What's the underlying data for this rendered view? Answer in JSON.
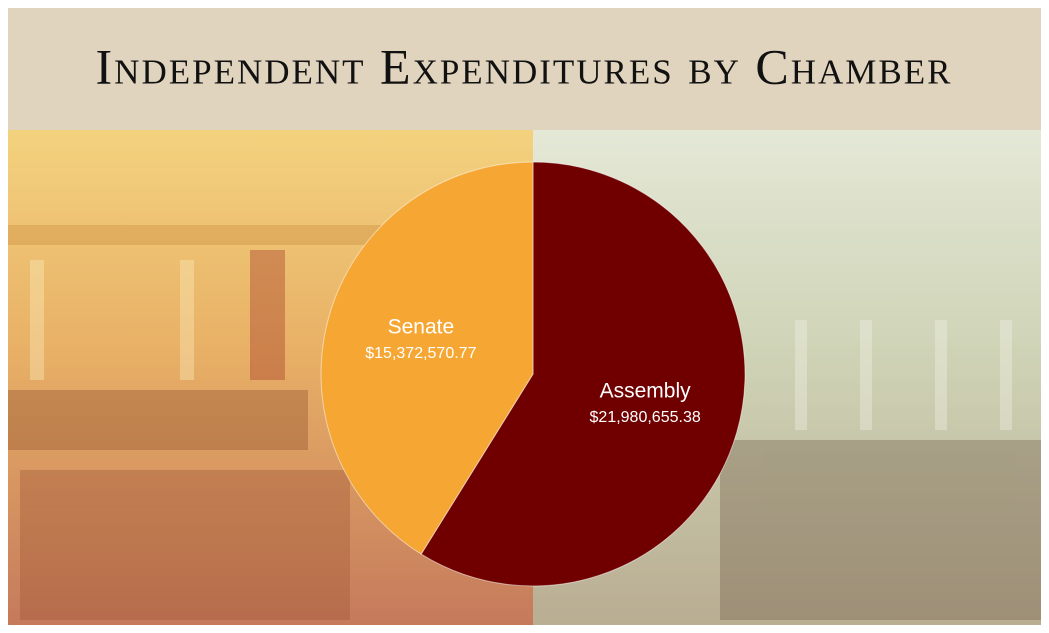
{
  "chart_data": {
    "type": "pie",
    "title": "Independent Expenditures by Chamber",
    "categories": [
      "Senate",
      "Assembly"
    ],
    "values": [
      15372570.77,
      21980655.38
    ],
    "value_labels": [
      "$15,372,570.77",
      "$21,980,655.38"
    ],
    "colors": [
      "#f6a733",
      "#700000"
    ]
  }
}
